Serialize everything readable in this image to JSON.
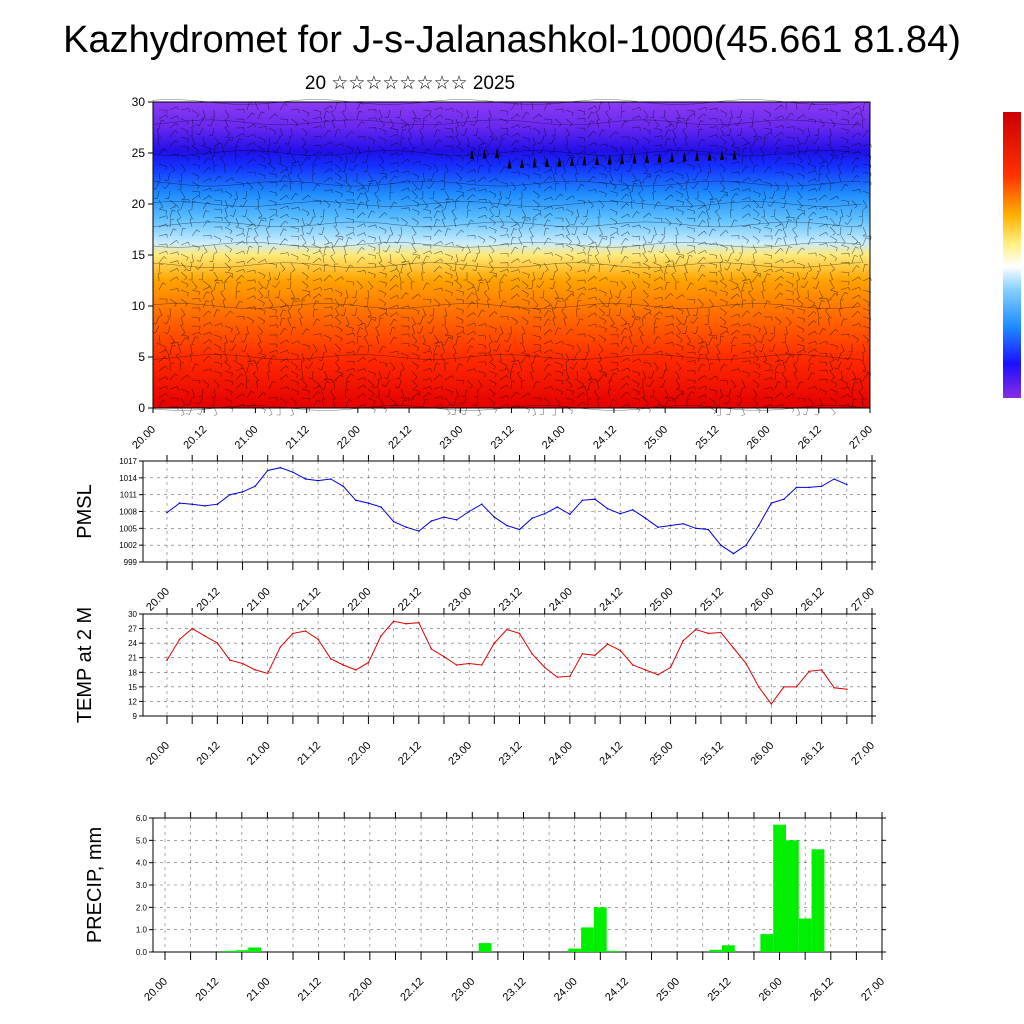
{
  "header": {
    "title": "Kazhydromet for J-s-Jalanashkol-1000(45.661 81.84)",
    "subtitle": "20 ☆☆☆☆☆☆☆☆ 2025"
  },
  "time_ticks": [
    "20.00",
    "20.12",
    "21.00",
    "21.12",
    "22.00",
    "22.12",
    "23.00",
    "23.12",
    "24.00",
    "24.12",
    "25.00",
    "25.12",
    "26.00",
    "26.12",
    "27.00"
  ],
  "chart_data": [
    {
      "type": "heatmap",
      "name": "vertical-section",
      "ylim": [
        0,
        30
      ],
      "yticks": [
        0,
        5,
        10,
        15,
        20,
        25,
        30
      ],
      "xlim": [
        0,
        168
      ],
      "colorscale_hint": [
        "#8a2be2",
        "#1e1eff",
        "#1e90ff",
        "#87cefa",
        "#ffffcc",
        "#ffd700",
        "#ffa500",
        "#ff4500",
        "#e60000"
      ],
      "band_levels": [
        0,
        5,
        10,
        14,
        16,
        18,
        20,
        22,
        25,
        28,
        30
      ]
    },
    {
      "type": "line",
      "name": "pmsl",
      "ylabel": "PMSL",
      "ylim": [
        999,
        1017
      ],
      "yticks": [
        999,
        1002,
        1005,
        1008,
        1011,
        1014,
        1017
      ],
      "color": "#0000dd",
      "x": [
        0,
        3,
        6,
        9,
        12,
        15,
        18,
        21,
        24,
        27,
        30,
        33,
        36,
        39,
        42,
        45,
        48,
        51,
        54,
        57,
        60,
        63,
        66,
        69,
        72,
        75,
        78,
        81,
        84,
        87,
        90,
        93,
        96,
        99,
        102,
        105,
        108,
        111,
        114,
        117,
        120,
        123,
        126,
        129,
        132,
        135,
        138,
        141,
        144,
        147,
        150,
        153,
        156,
        159,
        162
      ],
      "values": [
        1007.8,
        1009.5,
        1009.3,
        1009,
        1009.3,
        1011,
        1011.5,
        1012.5,
        1015.3,
        1015.8,
        1015,
        1013.8,
        1013.5,
        1013.8,
        1012.5,
        1010,
        1009.5,
        1008.8,
        1006.2,
        1005.2,
        1004.5,
        1006.3,
        1007,
        1006.5,
        1008,
        1009.3,
        1007,
        1005.5,
        1004.8,
        1006.8,
        1007.6,
        1008.8,
        1007.5,
        1010,
        1010.2,
        1008.5,
        1007.6,
        1008.3,
        1006.8,
        1005.2,
        1005.5,
        1005.8,
        1005,
        1004.8,
        1002,
        1000.5,
        1002,
        1005.5,
        1009.5,
        1010.2,
        1012.3,
        1012.3,
        1012.5,
        1013.8,
        1012.8
      ]
    },
    {
      "type": "line",
      "name": "temp2m",
      "ylabel": "TEMP at 2 M",
      "ylim": [
        9,
        30
      ],
      "yticks": [
        9,
        12,
        15,
        18,
        21,
        24,
        27,
        30
      ],
      "color": "#dd0000",
      "x": [
        0,
        3,
        6,
        9,
        12,
        15,
        18,
        21,
        24,
        27,
        30,
        33,
        36,
        39,
        42,
        45,
        48,
        51,
        54,
        57,
        60,
        63,
        66,
        69,
        72,
        75,
        78,
        81,
        84,
        87,
        90,
        93,
        96,
        99,
        102,
        105,
        108,
        111,
        114,
        117,
        120,
        123,
        126,
        129,
        132,
        135,
        138,
        141,
        144,
        147,
        150,
        153,
        156,
        159,
        162
      ],
      "values": [
        20.5,
        24.8,
        27,
        25.5,
        24,
        20.5,
        19.8,
        18.5,
        17.8,
        23.2,
        26,
        26.5,
        24.8,
        20.8,
        19.5,
        18.5,
        20,
        25.5,
        28.5,
        28,
        28.2,
        22.8,
        21.2,
        19.5,
        19.8,
        19.5,
        24,
        26.8,
        26,
        21.8,
        19,
        17,
        17.2,
        21.8,
        21.5,
        23.8,
        22.5,
        19.5,
        18.5,
        17.5,
        19,
        24.5,
        26.8,
        26,
        26.2,
        23,
        19.8,
        15,
        11.5,
        15,
        15,
        18.2,
        18.5,
        14.8,
        14.5
      ]
    },
    {
      "type": "bar",
      "name": "precip",
      "ylabel": "PRECIP, mm",
      "ylim": [
        0,
        6
      ],
      "yticks": [
        "0.0",
        "1.0",
        "2.0",
        "3.0",
        "4.0",
        "5.0",
        "6.0"
      ],
      "color": "#00ee00",
      "bar_width_hours": 3,
      "x": [
        15,
        18,
        21,
        75,
        96,
        99,
        102,
        105,
        129,
        132,
        141,
        144,
        147,
        150,
        153
      ],
      "values": [
        0.05,
        0.08,
        0.2,
        0.4,
        0.15,
        1.1,
        2.0,
        0.05,
        0.1,
        0.3,
        0.8,
        5.7,
        5.0,
        1.5,
        4.6
      ]
    }
  ]
}
